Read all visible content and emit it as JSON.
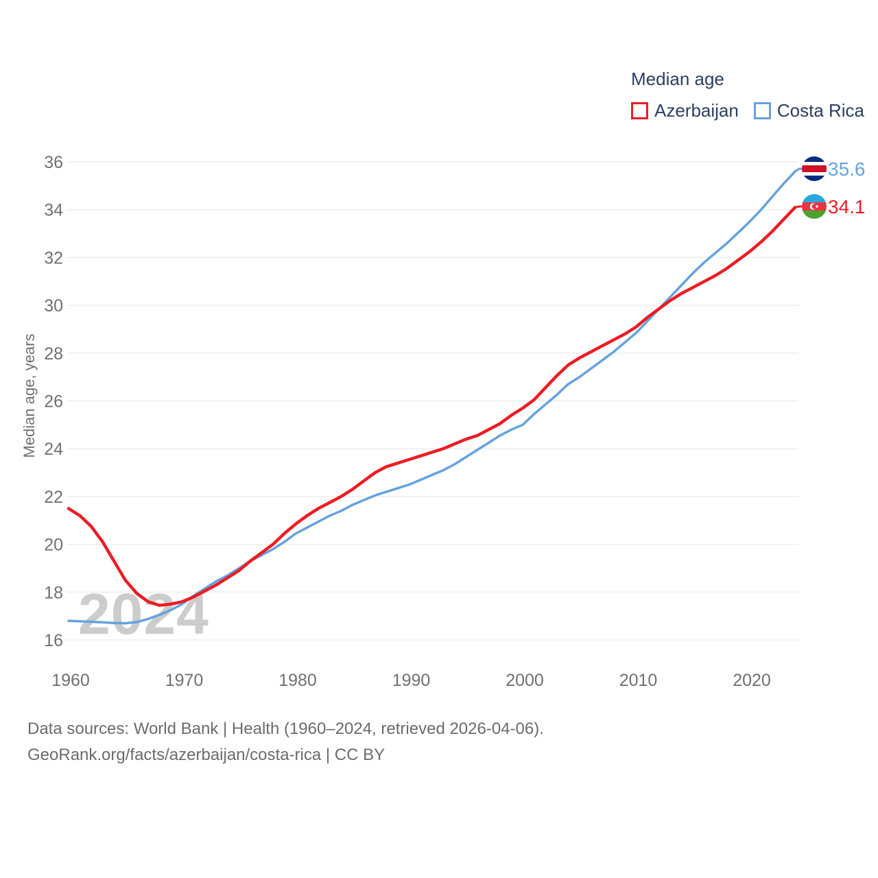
{
  "legend": {
    "title": "Median age",
    "items": [
      {
        "label": "Azerbaijan",
        "color": "#ec1c24"
      },
      {
        "label": "Costa Rica",
        "color": "#64a2df"
      }
    ]
  },
  "watermark": "2024",
  "footer": {
    "line1": "Data sources: World Bank | Health (1960–2024, retrieved 2026-04-06).",
    "line2": "GeoRank.org/facts/azerbaijan/costa-rica | CC BY"
  },
  "colors": {
    "azerbaijan_line": "#ec1c24",
    "costa_rica_line": "#64a2df",
    "legend_text": "#2a3f5f",
    "axis_text": "#707070",
    "footer_text": "#6b6b6b",
    "gridline": "#ededed",
    "watermark": "#cccccc"
  },
  "chart_data": {
    "type": "line",
    "title": "Median age",
    "xlabel": "",
    "ylabel": "Median age, years",
    "x_start": 1960,
    "x_end": 2024,
    "xticks": [
      1960,
      1970,
      1980,
      1990,
      2000,
      2010,
      2020
    ],
    "yticks": [
      16,
      18,
      20,
      22,
      24,
      26,
      28,
      30,
      32,
      34,
      36
    ],
    "ylim": [
      16,
      36
    ],
    "grid": "horizontal-only",
    "legend_position": "top-right",
    "series": [
      {
        "name": "Azerbaijan",
        "color": "#ec1c24",
        "end_label": "34.1",
        "end_value": 34.1,
        "flag": "azerbaijan",
        "values": [
          21.5,
          21.2,
          20.75,
          20.1,
          19.3,
          18.5,
          17.95,
          17.6,
          17.45,
          17.5,
          17.6,
          17.8,
          18.05,
          18.3,
          18.6,
          18.9,
          19.3,
          19.65,
          20.0,
          20.45,
          20.85,
          21.2,
          21.5,
          21.75,
          22.0,
          22.3,
          22.65,
          23.0,
          23.25,
          23.4,
          23.55,
          23.7,
          23.85,
          24.0,
          24.2,
          24.4,
          24.55,
          24.8,
          25.05,
          25.4,
          25.7,
          26.05,
          26.55,
          27.05,
          27.5,
          27.8,
          28.05,
          28.3,
          28.55,
          28.8,
          29.1,
          29.5,
          29.85,
          30.2,
          30.5,
          30.75,
          31.0,
          31.25,
          31.55,
          31.9,
          32.25,
          32.65,
          33.1,
          33.6,
          34.1
        ]
      },
      {
        "name": "Costa Rica",
        "color": "#64a2df",
        "end_label": "35.6",
        "end_value": 35.6,
        "flag": "costa-rica",
        "values": [
          16.8,
          16.78,
          16.76,
          16.74,
          16.71,
          16.7,
          16.75,
          16.88,
          17.05,
          17.25,
          17.5,
          17.85,
          18.15,
          18.45,
          18.7,
          19.0,
          19.3,
          19.55,
          19.8,
          20.1,
          20.45,
          20.7,
          20.95,
          21.2,
          21.4,
          21.65,
          21.85,
          22.05,
          22.2,
          22.35,
          22.5,
          22.7,
          22.9,
          23.1,
          23.35,
          23.65,
          23.95,
          24.25,
          24.55,
          24.8,
          25.0,
          25.45,
          25.85,
          26.25,
          26.7,
          27.0,
          27.35,
          27.7,
          28.05,
          28.45,
          28.85,
          29.35,
          29.85,
          30.35,
          30.85,
          31.35,
          31.8,
          32.2,
          32.6,
          33.05,
          33.5,
          34.0,
          34.55,
          35.1,
          35.6
        ]
      }
    ]
  }
}
